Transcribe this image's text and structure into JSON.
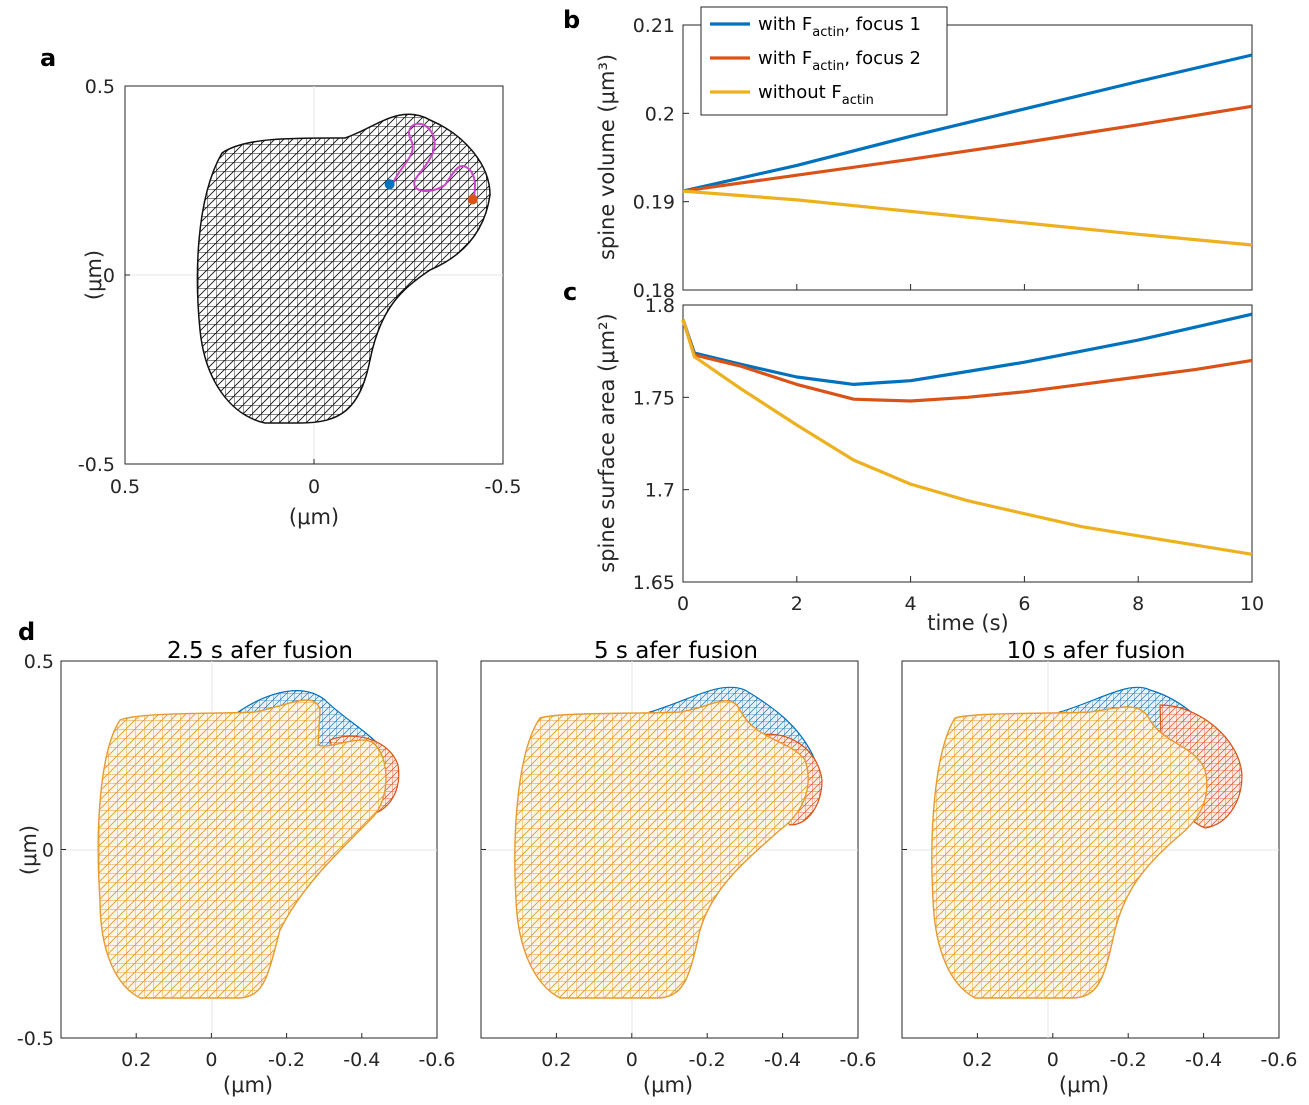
{
  "panels": {
    "a": "a",
    "b": "b",
    "c": "c",
    "d": "d"
  },
  "colors": {
    "focus1": "#0072BD",
    "focus2": "#D95319",
    "without": "#EDB120",
    "magenta": "#CC44CC",
    "mesh": "#111111"
  },
  "chart_data": [
    {
      "type": "scatter",
      "panel": "a",
      "title": "",
      "xlabel": "(μm)",
      "ylabel": "(μm)",
      "xlim": [
        0.5,
        -0.5
      ],
      "ylim": [
        -0.5,
        0.5
      ],
      "x_ticks": [
        "0.5",
        "0",
        "-0.5"
      ],
      "y_ticks": [
        "0.5",
        "0",
        "-0.5"
      ],
      "markers": [
        {
          "name": "focus 1",
          "x": -0.2,
          "y": 0.24,
          "color": "#0072BD"
        },
        {
          "name": "focus 2",
          "x": -0.42,
          "y": 0.2,
          "color": "#D95319"
        }
      ],
      "grid": true
    },
    {
      "type": "line",
      "panel": "b",
      "ylabel": "spine volume (μm³)",
      "xlim": [
        0,
        10
      ],
      "ylim": [
        0.18,
        0.21
      ],
      "y_ticks": [
        "0.18",
        "0.19",
        "0.2",
        "0.21"
      ],
      "legend_position": "top-left",
      "x": [
        0,
        2,
        4,
        6,
        8,
        10
      ],
      "series": [
        {
          "name": "with F_actin, focus 1",
          "color": "#0072BD",
          "values": [
            0.1912,
            0.1941,
            0.1974,
            0.2005,
            0.2036,
            0.2066
          ]
        },
        {
          "name": "with F_actin, focus 2",
          "color": "#D95319",
          "values": [
            0.1912,
            0.193,
            0.1948,
            0.1967,
            0.1987,
            0.2008
          ]
        },
        {
          "name": "without F_actin",
          "color": "#EDB120",
          "values": [
            0.1912,
            0.1902,
            0.1889,
            0.1876,
            0.1863,
            0.1851
          ]
        }
      ]
    },
    {
      "type": "line",
      "panel": "c",
      "ylabel": "spine surface area (μm²)",
      "xlabel": "time (s)",
      "xlim": [
        0,
        10
      ],
      "ylim": [
        1.65,
        1.8
      ],
      "x_ticks": [
        "0",
        "2",
        "4",
        "6",
        "8",
        "10"
      ],
      "y_ticks": [
        "1.65",
        "1.7",
        "1.75",
        "1.8"
      ],
      "x": [
        0,
        0.2,
        1,
        2,
        3,
        4,
        5,
        6,
        7,
        8,
        9,
        10
      ],
      "series": [
        {
          "name": "with F_actin, focus 1",
          "color": "#0072BD",
          "values": [
            1.792,
            1.774,
            1.768,
            1.761,
            1.757,
            1.759,
            1.764,
            1.769,
            1.775,
            1.781,
            1.788,
            1.795
          ]
        },
        {
          "name": "with F_actin, focus 2",
          "color": "#D95319",
          "values": [
            1.792,
            1.773,
            1.767,
            1.757,
            1.749,
            1.748,
            1.75,
            1.753,
            1.757,
            1.761,
            1.765,
            1.77
          ]
        },
        {
          "name": "without F_actin",
          "color": "#EDB120",
          "values": [
            1.792,
            1.772,
            1.755,
            1.735,
            1.716,
            1.703,
            1.694,
            1.687,
            1.68,
            1.675,
            1.67,
            1.665
          ]
        }
      ]
    }
  ],
  "legend": [
    {
      "pre": "with F",
      "sub": "actin",
      "post": ", focus 1",
      "color": "#0072BD"
    },
    {
      "pre": "with F",
      "sub": "actin",
      "post": ", focus 2",
      "color": "#D95319"
    },
    {
      "pre": "without F",
      "sub": "actin",
      "post": "",
      "color": "#EDB120"
    }
  ],
  "panel_d": {
    "titles": [
      "2.5 s afer fusion",
      "5 s afer fusion",
      "10 s afer fusion"
    ],
    "xlabel": "(μm)",
    "ylabel": "(μm)",
    "x_ticks": [
      "0.2",
      "0",
      "-0.2",
      "-0.4",
      "-0.6"
    ],
    "y_ticks": [
      "0.5",
      "0",
      "-0.5"
    ],
    "xlim": [
      0.4,
      -0.6
    ],
    "ylim": [
      -0.5,
      0.5
    ]
  }
}
